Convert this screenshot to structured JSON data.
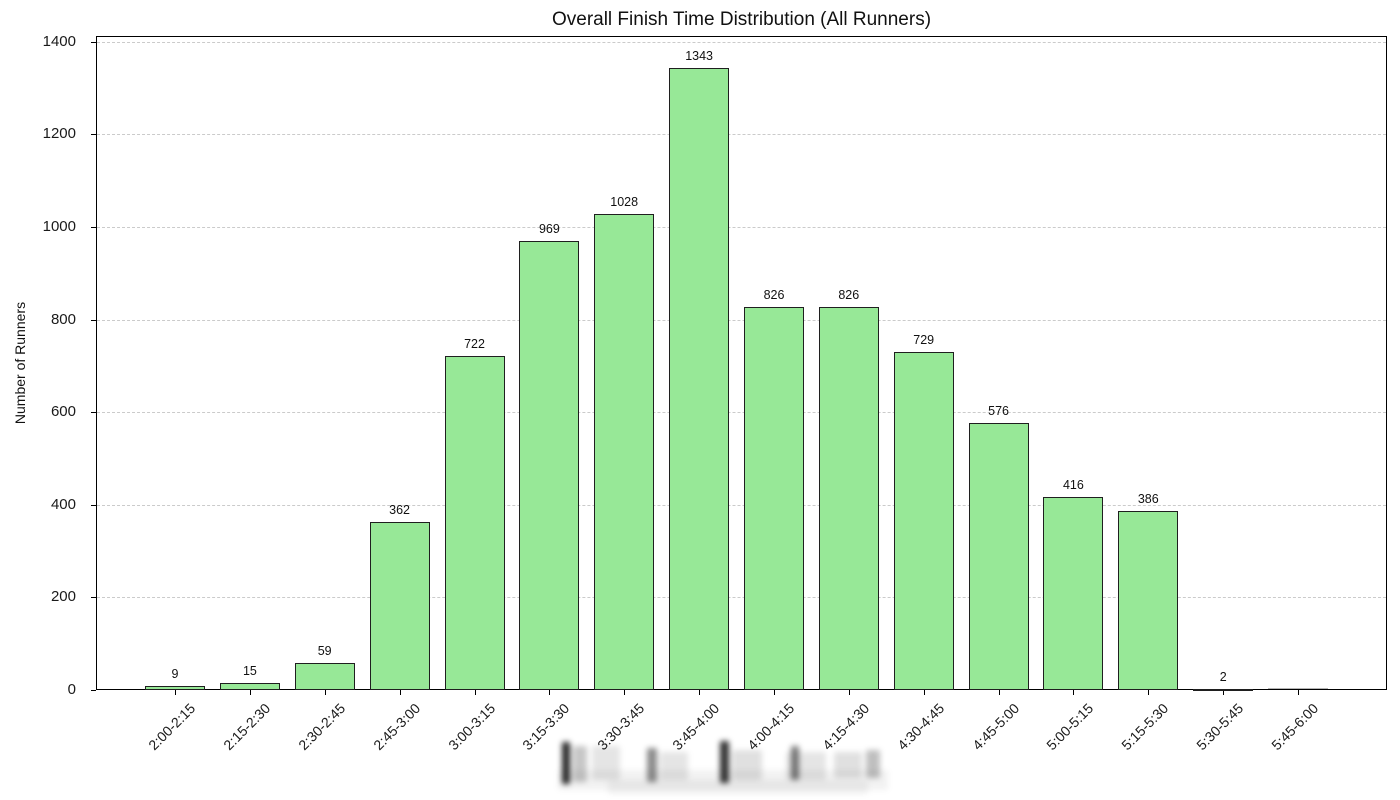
{
  "chart_data": {
    "type": "bar",
    "title": "Overall Finish Time Distribution (All Runners)",
    "xlabel": "",
    "ylabel": "Number of Runners",
    "categories": [
      "2:00-2:15",
      "2:15-2:30",
      "2:30-2:45",
      "2:45-3:00",
      "3:00-3:15",
      "3:15-3:30",
      "3:30-3:45",
      "3:45-4:00",
      "4:00-4:15",
      "4:15-4:30",
      "4:30-4:45",
      "4:45-5:00",
      "5:00-5:15",
      "5:15-5:30",
      "5:30-5:45",
      "5:45-6:00"
    ],
    "values": [
      9,
      15,
      59,
      362,
      722,
      969,
      1028,
      1343,
      826,
      826,
      729,
      576,
      416,
      386,
      2,
      0
    ],
    "bar_value_labels": [
      "9",
      "15",
      "59",
      "362",
      "722",
      "969",
      "1028",
      "1343",
      "826",
      "826",
      "729",
      "576",
      "416",
      "386",
      "2",
      ""
    ],
    "yticks": [
      0,
      200,
      400,
      600,
      800,
      1000,
      1200,
      1400
    ],
    "ylim": [
      0,
      1412
    ],
    "grid": "horizontal dashed, behind bars",
    "legend": "none",
    "colors": {
      "bar_fill": "#97e897",
      "bar_edge": "#1f1f1f",
      "grid": "#cbcbcb",
      "axis": "#000000",
      "text": "#1a1a1a",
      "background": "#ffffff"
    }
  }
}
